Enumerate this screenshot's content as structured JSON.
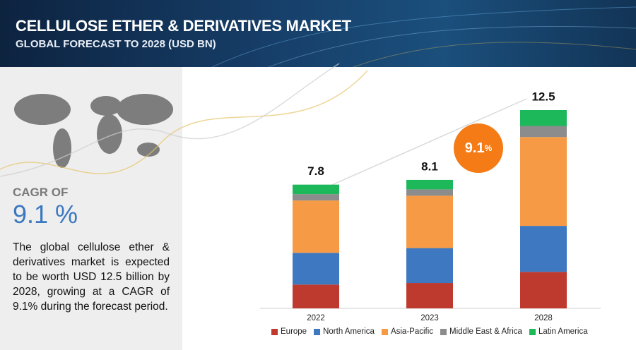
{
  "header": {
    "title": "CELLULOSE ETHER & DERIVATIVES MARKET",
    "subtitle": "GLOBAL FORECAST TO 2028 (USD BN)"
  },
  "sidebar": {
    "cagr_label": "CAGR OF",
    "cagr_value": "9.1 %",
    "description": "The global cellulose ether & derivatives market is expected to be worth USD 12.5 billion by 2028, growing at a CAGR of 9.1% during the forecast period."
  },
  "chart_data": {
    "type": "stacked_bar",
    "categories": [
      "2022",
      "2023",
      "2028"
    ],
    "series": [
      {
        "name": "Europe",
        "color": "#be3a2e",
        "values": [
          1.5,
          1.6,
          2.3
        ]
      },
      {
        "name": "North America",
        "color": "#3d78c0",
        "values": [
          2.0,
          2.2,
          2.9
        ]
      },
      {
        "name": "Asia-Pacific",
        "color": "#f79a45",
        "values": [
          3.3,
          3.3,
          5.6
        ]
      },
      {
        "name": "Middle East & Africa",
        "color": "#8c8c8c",
        "values": [
          0.4,
          0.4,
          0.7
        ]
      },
      {
        "name": "Latin America",
        "color": "#1db85a",
        "values": [
          0.6,
          0.6,
          1.0
        ]
      }
    ],
    "totals": [
      7.8,
      8.1,
      12.5
    ],
    "cagr_badge": {
      "value": "9.1",
      "unit": "%"
    }
  }
}
